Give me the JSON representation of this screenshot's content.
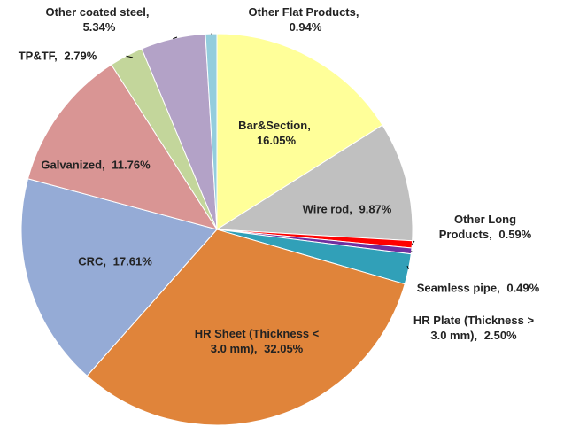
{
  "chart_data": {
    "type": "pie",
    "categories": [
      "Bar&Section,",
      "Wire rod,",
      "Other Long Products,",
      "Seamless pipe,",
      "HR Plate (Thickness > 3.0 mm),",
      "HR Sheet (Thickness < 3.0 mm),",
      "CRC,",
      "Galvanized,",
      "TP&TF,",
      "Other coated steel,",
      "Other Flat Products,"
    ],
    "values": [
      16.05,
      9.87,
      0.59,
      0.49,
      2.5,
      32.05,
      17.61,
      11.76,
      2.79,
      5.34,
      0.94
    ],
    "value_labels": [
      "16.05%",
      "9.87%",
      "0.59%",
      "0.49%",
      "2.50%",
      "32.05%",
      "17.61%",
      "11.76%",
      "2.79%",
      "5.34%",
      "0.94%"
    ],
    "colors": [
      "#ffff99",
      "#c0c0c0",
      "#ff0000",
      "#7030a0",
      "#31a0b8",
      "#e0843a",
      "#95abd6",
      "#d99594",
      "#c3d69b",
      "#b3a2c7",
      "#93cddd"
    ]
  }
}
